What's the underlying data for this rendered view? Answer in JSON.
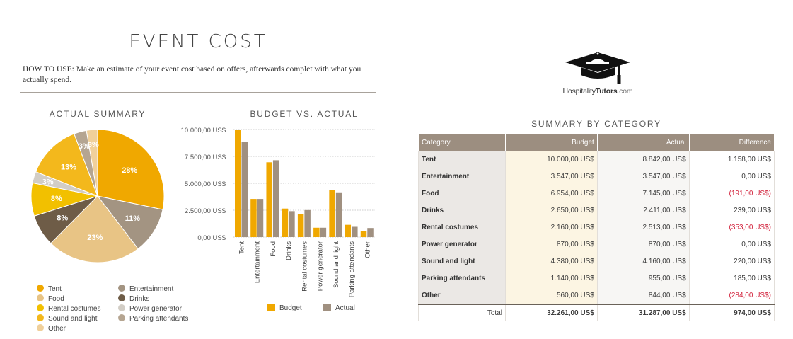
{
  "page": {
    "title": "EVENT COST",
    "howto": "HOW TO USE: Make an estimate of your event cost based on offers, afterwards complet with what you actually spend."
  },
  "pie": {
    "title": "ACTUAL SUMMARY",
    "legend_left": [
      "Tent",
      "Food",
      "Rental costumes",
      "Sound and light",
      "Other"
    ],
    "legend_right": [
      "Entertainment",
      "Drinks",
      "Power generator",
      "Parking attendants"
    ]
  },
  "bar": {
    "title": "BUDGET VS. ACTUAL",
    "legend": {
      "budget": "Budget",
      "actual": "Actual"
    }
  },
  "logo": {
    "text_a": "Hospitality",
    "text_b": "Tutors",
    "text_c": ".com"
  },
  "summary": {
    "title": "SUMMARY BY CATEGORY",
    "headers": [
      "Category",
      "Budget",
      "Actual",
      "Difference"
    ],
    "rows": [
      {
        "category": "Tent",
        "budget": "10.000,00 US$",
        "actual": "8.842,00 US$",
        "difference": "1.158,00 US$",
        "negative": false
      },
      {
        "category": "Entertainment",
        "budget": "3.547,00 US$",
        "actual": "3.547,00 US$",
        "difference": "0,00 US$",
        "negative": false
      },
      {
        "category": "Food",
        "budget": "6.954,00 US$",
        "actual": "7.145,00 US$",
        "difference": "(191,00 US$)",
        "negative": true
      },
      {
        "category": "Drinks",
        "budget": "2.650,00 US$",
        "actual": "2.411,00 US$",
        "difference": "239,00 US$",
        "negative": false
      },
      {
        "category": "Rental costumes",
        "budget": "2.160,00 US$",
        "actual": "2.513,00 US$",
        "difference": "(353,00 US$)",
        "negative": true
      },
      {
        "category": "Power generator",
        "budget": "870,00 US$",
        "actual": "870,00 US$",
        "difference": "0,00 US$",
        "negative": false
      },
      {
        "category": "Sound and light",
        "budget": "4.380,00 US$",
        "actual": "4.160,00 US$",
        "difference": "220,00 US$",
        "negative": false
      },
      {
        "category": "Parking attendants",
        "budget": "1.140,00 US$",
        "actual": "955,00 US$",
        "difference": "185,00 US$",
        "negative": false
      },
      {
        "category": "Other",
        "budget": "560,00 US$",
        "actual": "844,00 US$",
        "difference": "(284,00 US$)",
        "negative": true
      }
    ],
    "total": {
      "label": "Total",
      "budget": "32.261,00 US$",
      "actual": "31.287,00 US$",
      "difference": "974,00 US$"
    }
  },
  "colors": {
    "budget": "#f0a800",
    "actual": "#a09080",
    "negative": "#d2203a",
    "header": "#9c8e80"
  },
  "chart_data": [
    {
      "type": "pie",
      "title": "ACTUAL SUMMARY",
      "slices": [
        {
          "label": "Tent",
          "value": 8842,
          "pct_label": "28%",
          "color": "#f0a800"
        },
        {
          "label": "Entertainment",
          "value": 3547,
          "pct_label": "11%",
          "color": "#a39482"
        },
        {
          "label": "Food",
          "value": 7145,
          "pct_label": "23%",
          "color": "#e8c485"
        },
        {
          "label": "Drinks",
          "value": 2411,
          "pct_label": "8%",
          "color": "#6e5c47"
        },
        {
          "label": "Rental costumes",
          "value": 2513,
          "pct_label": "8%",
          "color": "#f2c000"
        },
        {
          "label": "Power generator",
          "value": 870,
          "pct_label": "3%",
          "color": "#d2cdc5"
        },
        {
          "label": "Sound and light",
          "value": 4160,
          "pct_label": "13%",
          "color": "#f3b81c"
        },
        {
          "label": "Parking attendants",
          "value": 955,
          "pct_label": "3%",
          "color": "#b5a591"
        },
        {
          "label": "Other",
          "value": 844,
          "pct_label": "3%",
          "color": "#f0d09a"
        }
      ]
    },
    {
      "type": "bar",
      "title": "BUDGET VS. ACTUAL",
      "categories": [
        "Tent",
        "Entertainment",
        "Food",
        "Drinks",
        "Rental costumes",
        "Power generator",
        "Sound and light",
        "Parking attendants",
        "Other"
      ],
      "series": [
        {
          "name": "Budget",
          "values": [
            10000,
            3547,
            6954,
            2650,
            2160,
            870,
            4380,
            1140,
            560
          ],
          "color": "#f0a800"
        },
        {
          "name": "Actual",
          "values": [
            8842,
            3547,
            7145,
            2411,
            2513,
            870,
            4160,
            955,
            844
          ],
          "color": "#a09080"
        }
      ],
      "ylim": [
        0,
        10000
      ],
      "yticks": [
        0,
        2500,
        5000,
        7500,
        10000
      ],
      "ytick_labels": [
        "0,00 US$",
        "2.500,00 US$",
        "5.000,00 US$",
        "7.500,00 US$",
        "10.000,00 US$"
      ],
      "grid": true,
      "legend_position": "bottom"
    }
  ]
}
